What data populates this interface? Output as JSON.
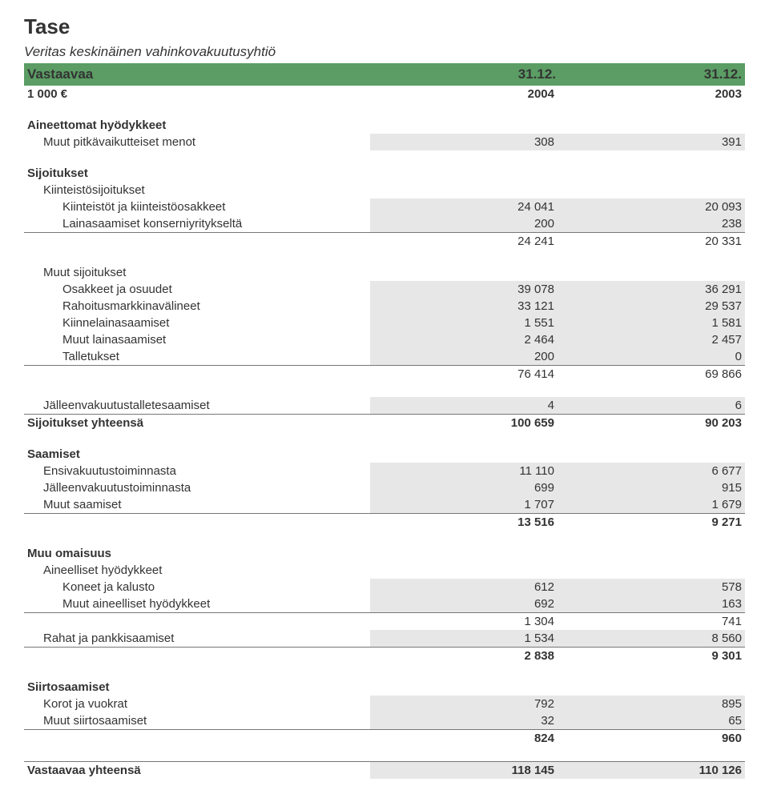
{
  "title": "Tase",
  "subtitle": "Veritas keskinäinen vahinkovakuutusyhtiö",
  "header": {
    "label": "Vastaavaa",
    "c2": "31.12.",
    "c3": "31.12."
  },
  "currency": {
    "label": "1 000 €",
    "c2": "2004",
    "c3": "2003"
  },
  "sections": [
    {
      "title": "Aineettomat hyödykkeet",
      "rows": [
        {
          "label": "Muut pitkävaikutteiset menot",
          "c2": "308",
          "c3": "391",
          "data": true,
          "lvl": 1
        }
      ]
    },
    {
      "title": "Sijoitukset",
      "rows": [
        {
          "label": "Kiinteistösijoitukset",
          "lvl": 1
        },
        {
          "label": "Kiinteistöt ja kiinteistöosakkeet",
          "c2": "24 041",
          "c3": "20 093",
          "data": true,
          "lvl": 2
        },
        {
          "label": "Lainasaamiset konserniyritykseltä",
          "c2": "200",
          "c3": "238",
          "data": true,
          "lvl": 2
        },
        {
          "label": "",
          "c2": "24 241",
          "c3": "20 331",
          "total": true,
          "lvl": 2
        }
      ]
    },
    {
      "title": "",
      "rows": [
        {
          "label": "Muut sijoitukset",
          "lvl": 1
        },
        {
          "label": "Osakkeet ja osuudet",
          "c2": "39 078",
          "c3": "36 291",
          "data": true,
          "lvl": 2
        },
        {
          "label": "Rahoitusmarkkinavälineet",
          "c2": "33 121",
          "c3": "29 537",
          "data": true,
          "lvl": 2
        },
        {
          "label": "Kiinnelainasaamiset",
          "c2": "1 551",
          "c3": "1 581",
          "data": true,
          "lvl": 2
        },
        {
          "label": "Muut lainasaamiset",
          "c2": "2 464",
          "c3": "2 457",
          "data": true,
          "lvl": 2
        },
        {
          "label": "Talletukset",
          "c2": "200",
          "c3": "0",
          "data": true,
          "lvl": 2
        },
        {
          "label": "",
          "c2": "76 414",
          "c3": "69 866",
          "total": true,
          "lvl": 2
        }
      ]
    },
    {
      "title": "",
      "rows": [
        {
          "label": "Jälleenvakuutustalletesaamiset",
          "c2": "4",
          "c3": "6",
          "data": true,
          "lvl": 1
        },
        {
          "label": "Sijoitukset yhteensä",
          "c2": "100 659",
          "c3": "90 203",
          "lvl": 0,
          "bold": true,
          "total": true
        }
      ]
    },
    {
      "title": "Saamiset",
      "rows": [
        {
          "label": "Ensivakuutustoiminnasta",
          "c2": "11 110",
          "c3": "6 677",
          "data": true,
          "lvl": 1
        },
        {
          "label": "Jälleenvakuutustoiminnasta",
          "c2": "699",
          "c3": "915",
          "data": true,
          "lvl": 1
        },
        {
          "label": "Muut saamiset",
          "c2": "1 707",
          "c3": "1 679",
          "data": true,
          "lvl": 1
        },
        {
          "label": "",
          "c2": "13 516",
          "c3": "9 271",
          "lvl": 1,
          "bold": true,
          "total": true
        }
      ]
    },
    {
      "title": "Muu omaisuus",
      "rows": [
        {
          "label": "Aineelliset hyödykkeet",
          "lvl": 1
        },
        {
          "label": "Koneet ja kalusto",
          "c2": "612",
          "c3": "578",
          "data": true,
          "lvl": 2
        },
        {
          "label": "Muut aineelliset hyödykkeet",
          "c2": "692",
          "c3": "163",
          "data": true,
          "lvl": 2
        },
        {
          "label": "",
          "c2": "1 304",
          "c3": "741",
          "total": true,
          "lvl": 2
        },
        {
          "label": "Rahat ja pankkisaamiset",
          "c2": "1 534",
          "c3": "8 560",
          "data": true,
          "lvl": 1
        },
        {
          "label": "",
          "c2": "2 838",
          "c3": "9 301",
          "lvl": 1,
          "bold": true,
          "total": true
        }
      ]
    },
    {
      "title": "Siirtosaamiset",
      "rows": [
        {
          "label": "Korot ja vuokrat",
          "c2": "792",
          "c3": "895",
          "data": true,
          "lvl": 1
        },
        {
          "label": "Muut siirtosaamiset",
          "c2": "32",
          "c3": "65",
          "data": true,
          "lvl": 1
        },
        {
          "label": "",
          "c2": "824",
          "c3": "960",
          "lvl": 1,
          "bold": true,
          "total": true
        }
      ]
    }
  ],
  "final": {
    "label": "Vastaavaa yhteensä",
    "c2": "118 145",
    "c3": "110 126"
  }
}
